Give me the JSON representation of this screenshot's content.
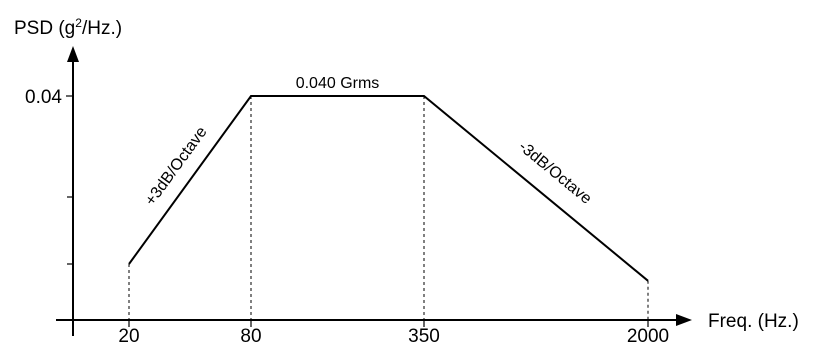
{
  "chart_data": {
    "type": "line",
    "title": "",
    "ylabel_main": "PSD (g",
    "ylabel_sup": "2",
    "ylabel_tail": "/Hz.)",
    "xlabel": "Freq. (Hz.)",
    "x_tick_labels": [
      "20",
      "80",
      "350",
      "2000"
    ],
    "y_tick_labels": [
      "0.04"
    ],
    "y_label_value": 0.04,
    "x_scale": "log",
    "series": [
      {
        "x": [
          20,
          80,
          350,
          2000
        ],
        "y": [
          0.01,
          0.04,
          0.04,
          0.007
        ]
      }
    ],
    "annotations": {
      "rising_slope": "+3dB/Octave",
      "flat_level": "0.040 Grms",
      "falling_slope": "-3dB/Octave"
    },
    "grid": false,
    "legend": "none",
    "colors": {
      "line": "#000000",
      "axis": "#000000"
    }
  }
}
